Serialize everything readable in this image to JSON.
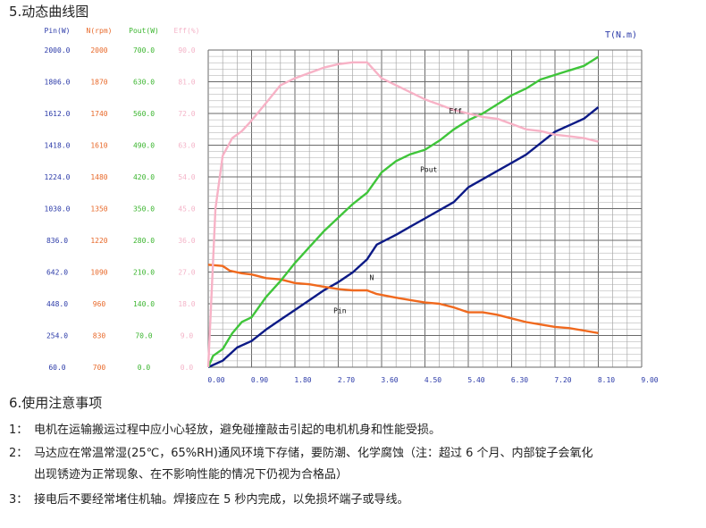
{
  "section5_title": "5.动态曲线图",
  "section6_title": "6.使用注意事项",
  "notes": [
    {
      "num": "1：",
      "text": "电机在运输搬运过程中应小心轻放，避免碰撞敲击引起的电机机身和性能受损。"
    },
    {
      "num": "2：",
      "text": "马达应在常温常湿(25℃，65%RH)通风环境下存储，要防潮、化学腐蚀（注：超过 6 个月、内部锭子会氧化"
    },
    {
      "num": "",
      "text": "出现锈迹为正常现象、在不影响性能的情况下仍视为合格品）"
    },
    {
      "num": "3：",
      "text": "接电后不要经常堵住机轴。焊接应在 5 秒内完成，以免损坏端子或导线。"
    }
  ],
  "chart_data": {
    "type": "line",
    "xlabel": "T(N.m)",
    "xlim": [
      0,
      9
    ],
    "x_ticks": [
      "0.00",
      "0.90",
      "1.80",
      "2.70",
      "3.60",
      "4.50",
      "5.40",
      "6.30",
      "7.20",
      "8.10",
      "9.00"
    ],
    "axes": [
      {
        "name": "Pin(W)",
        "color": "#2b3aa8",
        "ticks": [
          "2000.0",
          "1806.0",
          "1612.0",
          "1418.0",
          "1224.0",
          "1030.0",
          "836.0",
          "642.0",
          "448.0",
          "254.0",
          "60.0"
        ],
        "range": [
          60,
          2000
        ]
      },
      {
        "name": "N(rpm)",
        "color": "#e8692a",
        "ticks": [
          "2000",
          "1870",
          "1740",
          "1610",
          "1480",
          "1350",
          "1220",
          "1090",
          "960",
          "830",
          "700"
        ],
        "range": [
          700,
          2000
        ]
      },
      {
        "name": "Pout(W)",
        "color": "#3bb52f",
        "ticks": [
          "700.0",
          "630.0",
          "560.0",
          "490.0",
          "420.0",
          "350.0",
          "280.0",
          "210.0",
          "140.0",
          "70.0",
          "0.0"
        ],
        "range": [
          0,
          700
        ]
      },
      {
        "name": "Eff(%)",
        "color": "#f4b4c8",
        "ticks": [
          "90.0",
          "81.0",
          "72.0",
          "63.0",
          "54.0",
          "45.0",
          "36.0",
          "27.0",
          "18.0",
          "9.0",
          "0.0"
        ],
        "range": [
          0,
          90
        ]
      }
    ],
    "series": [
      {
        "name": "Pin",
        "axis": 0,
        "color": "#0c1a86",
        "x": [
          0.0,
          0.3,
          0.6,
          0.9,
          1.2,
          1.5,
          1.8,
          2.1,
          2.4,
          2.7,
          3.0,
          3.3,
          3.5,
          3.9,
          4.2,
          4.5,
          4.8,
          5.1,
          5.4,
          5.7,
          6.0,
          6.3,
          6.6,
          6.9,
          7.2,
          7.5,
          7.8,
          8.1
        ],
        "y": [
          60,
          100,
          180,
          220,
          290,
          350,
          410,
          470,
          530,
          580,
          640,
          720,
          810,
          870,
          920,
          970,
          1020,
          1070,
          1160,
          1210,
          1260,
          1310,
          1360,
          1430,
          1500,
          1540,
          1580,
          1650
        ]
      },
      {
        "name": "N",
        "axis": 1,
        "color": "#f0691e",
        "x": [
          0.0,
          0.3,
          0.45,
          0.7,
          0.9,
          1.2,
          1.5,
          1.8,
          2.1,
          2.4,
          2.7,
          3.0,
          3.3,
          3.5,
          3.9,
          4.2,
          4.5,
          4.8,
          5.1,
          5.4,
          5.7,
          6.0,
          6.3,
          6.6,
          6.9,
          7.2,
          7.5,
          7.8,
          8.1
        ],
        "y": [
          1120,
          1115,
          1095,
          1085,
          1080,
          1065,
          1060,
          1045,
          1040,
          1030,
          1020,
          1015,
          1015,
          1000,
          985,
          975,
          965,
          960,
          945,
          925,
          925,
          915,
          900,
          885,
          875,
          865,
          860,
          850,
          840
        ]
      },
      {
        "name": "Pout",
        "axis": 2,
        "color": "#3fc53a",
        "x": [
          0.0,
          0.1,
          0.3,
          0.5,
          0.7,
          0.9,
          1.2,
          1.5,
          1.8,
          2.1,
          2.4,
          2.7,
          3.0,
          3.3,
          3.6,
          3.9,
          4.2,
          4.5,
          4.8,
          5.1,
          5.4,
          5.7,
          6.0,
          6.3,
          6.6,
          6.9,
          7.2,
          7.5,
          7.8,
          8.1
        ],
        "y": [
          0,
          25,
          40,
          75,
          100,
          110,
          155,
          190,
          230,
          265,
          300,
          330,
          360,
          385,
          430,
          455,
          470,
          480,
          500,
          525,
          545,
          560,
          580,
          600,
          615,
          635,
          645,
          655,
          665,
          685
        ]
      },
      {
        "name": "Eff",
        "axis": 3,
        "color": "#f7b2c6",
        "x": [
          0.0,
          0.15,
          0.3,
          0.5,
          0.7,
          0.9,
          1.2,
          1.5,
          1.8,
          2.1,
          2.4,
          2.7,
          3.0,
          3.3,
          3.6,
          3.9,
          4.2,
          4.5,
          4.8,
          5.1,
          5.4,
          5.7,
          6.0,
          6.3,
          6.6,
          6.9,
          7.2,
          7.5,
          7.8,
          8.1
        ],
        "y": [
          0,
          45,
          60,
          65,
          67,
          70,
          75,
          80,
          82,
          83.5,
          85,
          86,
          86.5,
          86.5,
          82,
          80,
          78,
          76,
          74.5,
          73,
          72,
          71,
          70.5,
          69,
          67.5,
          67,
          66,
          65.5,
          65,
          64
        ]
      }
    ],
    "annotations": [
      {
        "text": "Eff",
        "x": 5.0,
        "y_frac": 0.2
      },
      {
        "text": "Pout",
        "x": 4.4,
        "y_frac": 0.385
      },
      {
        "text": "N",
        "x": 3.35,
        "y_frac": 0.725
      },
      {
        "text": "Pin",
        "x": 2.6,
        "y_frac": 0.83
      }
    ],
    "grid": true
  }
}
